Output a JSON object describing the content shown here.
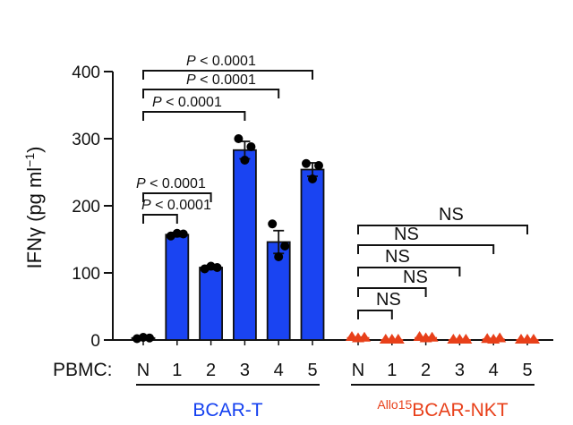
{
  "chart_data": {
    "type": "bar",
    "ylabel": "IFNγ (pg ml",
    "ylabel_sup": "−1",
    "ylabel_close": ")",
    "ylim": [
      0,
      400
    ],
    "yticks": [
      0,
      100,
      200,
      300,
      400
    ],
    "xlabel_prefix": "PBMC:",
    "categories": [
      "N",
      "1",
      "2",
      "3",
      "4",
      "5"
    ],
    "groups": [
      {
        "name": "BCAR-T",
        "name_sup": "",
        "color": "#1440f0",
        "bar_color": "#1a44f2",
        "marker": "circle",
        "marker_color": "#000000",
        "values": [
          3,
          157,
          108,
          283,
          146,
          254
        ],
        "sem": [
          1,
          3,
          3,
          13,
          17,
          10
        ],
        "points": [
          [
            2,
            4,
            3
          ],
          [
            155,
            159,
            158
          ],
          [
            106,
            110,
            108
          ],
          [
            300,
            268,
            288
          ],
          [
            173,
            124,
            140
          ],
          [
            263,
            240,
            260
          ]
        ],
        "comparisons": [
          {
            "from": "N",
            "to": "1",
            "label": "P < 0.0001"
          },
          {
            "from": "N",
            "to": "2",
            "label": "P < 0.0001"
          },
          {
            "from": "N",
            "to": "3",
            "label": "P < 0.0001"
          },
          {
            "from": "N",
            "to": "4",
            "label": "P < 0.0001"
          },
          {
            "from": "N",
            "to": "5",
            "label": "P < 0.0001"
          }
        ]
      },
      {
        "name": "BCAR-NKT",
        "name_sup": "Allo15",
        "color": "#e8401a",
        "bar_color": "#e8401a",
        "marker": "triangle",
        "marker_color": "#e8401a",
        "values": [
          3,
          0,
          3,
          0,
          1,
          0
        ],
        "sem": [
          1,
          0,
          1,
          0,
          1,
          0
        ],
        "points": [
          [
            4,
            2,
            3
          ],
          [
            0,
            0,
            0
          ],
          [
            4,
            2,
            3
          ],
          [
            0,
            0,
            0
          ],
          [
            1,
            0,
            2
          ],
          [
            0,
            0,
            0
          ]
        ],
        "comparisons": [
          {
            "from": "N",
            "to": "1",
            "label": "NS"
          },
          {
            "from": "N",
            "to": "2",
            "label": "NS"
          },
          {
            "from": "N",
            "to": "3",
            "label": "NS"
          },
          {
            "from": "N",
            "to": "4",
            "label": "NS"
          },
          {
            "from": "N",
            "to": "5",
            "label": "NS"
          }
        ]
      }
    ]
  }
}
